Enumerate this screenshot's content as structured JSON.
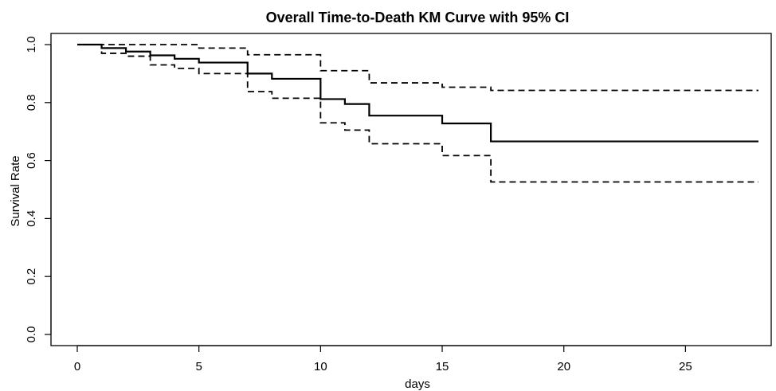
{
  "chart_data": {
    "type": "line",
    "title": "Overall Time-to-Death KM Curve with 95% CI",
    "xlabel": "days",
    "ylabel": "Survival Rate",
    "xlim": [
      0,
      28
    ],
    "ylim": [
      0,
      1
    ],
    "x_ticks": [
      0,
      5,
      10,
      15,
      20,
      25
    ],
    "x_tick_labels": [
      "0",
      "5",
      "10",
      "15",
      "20",
      "25"
    ],
    "y_ticks": [
      0,
      0.2,
      0.4,
      0.6,
      0.8,
      1
    ],
    "y_tick_labels": [
      "0.0",
      "0.2",
      "0.4",
      "0.6",
      "0.8",
      "1.0"
    ],
    "step": true,
    "grid": false,
    "series": [
      {
        "style": "solid",
        "color": "#000000",
        "x": [
          0,
          1,
          2,
          3,
          4,
          5,
          7,
          8,
          10,
          11,
          12,
          15,
          17,
          28
        ],
        "y": [
          1.0,
          0.988,
          0.976,
          0.963,
          0.951,
          0.938,
          0.9,
          0.882,
          0.812,
          0.795,
          0.755,
          0.728,
          0.666,
          0.666
        ]
      },
      {
        "style": "dashed",
        "color": "#000000",
        "x": [
          0,
          1,
          5,
          7,
          10,
          12,
          15,
          17,
          28
        ],
        "y": [
          1.0,
          1.0,
          0.988,
          0.965,
          0.91,
          0.868,
          0.853,
          0.842,
          0.842
        ]
      },
      {
        "style": "dashed",
        "color": "#000000",
        "x": [
          0,
          1,
          2,
          3,
          4,
          5,
          7,
          8,
          10,
          11,
          12,
          15,
          17,
          28
        ],
        "y": [
          1.0,
          0.97,
          0.96,
          0.93,
          0.918,
          0.9,
          0.838,
          0.815,
          0.73,
          0.705,
          0.658,
          0.617,
          0.526,
          0.526
        ]
      }
    ]
  }
}
